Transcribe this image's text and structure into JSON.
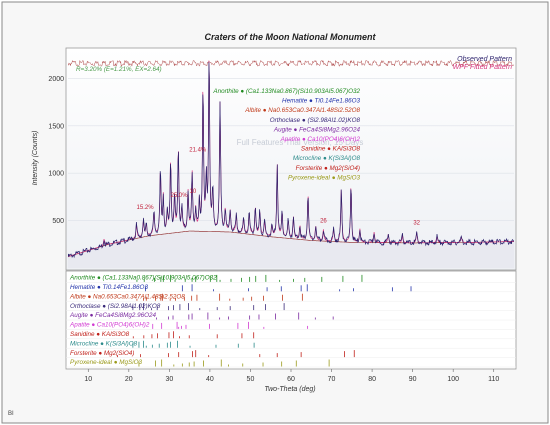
{
  "chart_data": {
    "type": "line",
    "title": "Craters of the Moon National Monument",
    "xlabel": "Two-Theta (deg)",
    "ylabel": "Intensity (Counts)",
    "xlim": [
      5,
      115
    ],
    "ylim": [
      0,
      2300
    ],
    "x_ticks": [
      10,
      20,
      30,
      40,
      50,
      60,
      70,
      80,
      90,
      100,
      110
    ],
    "y_ticks": [
      500,
      1000,
      1500,
      2000
    ],
    "legend": {
      "position": "top-right",
      "entries": [
        "Observed Pattern",
        "WPF Fitted Pattern"
      ]
    },
    "colors": {
      "observed": "#2a1f6b",
      "fitted": "#d6327a",
      "residual": "#b04a4a",
      "background_curve": "#8b2020"
    },
    "annotations": [
      {
        "text": "R=3.20% (E=1.21%, EX=2.64)",
        "x": 9,
        "y": 2195
      },
      {
        "text": "Full Features Trial Version, 15 Days",
        "x": 41,
        "y": 1345
      }
    ],
    "peak_labels": [
      {
        "text": "15.2%",
        "x": 24.0,
        "y": 625
      },
      {
        "text": "25.0%",
        "x": 32.4,
        "y": 750
      },
      {
        "text": "21.4%",
        "x": 37.0,
        "y": 1230
      },
      {
        "text": "10",
        "x": 35.8,
        "y": 790
      },
      {
        "text": "26",
        "x": 68.0,
        "y": 480
      },
      {
        "text": "32",
        "x": 91.0,
        "y": 460
      }
    ],
    "background": [
      [
        5,
        120
      ],
      [
        15,
        250
      ],
      [
        25,
        340
      ],
      [
        35,
        390
      ],
      [
        45,
        380
      ],
      [
        55,
        330
      ],
      [
        65,
        290
      ],
      [
        75,
        270
      ],
      [
        90,
        265
      ],
      [
        105,
        270
      ],
      [
        115,
        280
      ]
    ],
    "peaks": [
      {
        "x": 13.9,
        "h": 70
      },
      {
        "x": 21.9,
        "h": 150
      },
      {
        "x": 23.6,
        "h": 180
      },
      {
        "x": 24.3,
        "h": 120
      },
      {
        "x": 26.2,
        "h": 250
      },
      {
        "x": 27.8,
        "h": 680
      },
      {
        "x": 28.5,
        "h": 390
      },
      {
        "x": 29.5,
        "h": 220
      },
      {
        "x": 30.3,
        "h": 780
      },
      {
        "x": 31.3,
        "h": 380
      },
      {
        "x": 32.2,
        "h": 900
      },
      {
        "x": 33.1,
        "h": 250
      },
      {
        "x": 34.6,
        "h": 420
      },
      {
        "x": 35.6,
        "h": 620
      },
      {
        "x": 36.5,
        "h": 220
      },
      {
        "x": 37.4,
        "h": 310
      },
      {
        "x": 38.3,
        "h": 1550
      },
      {
        "x": 39.1,
        "h": 520
      },
      {
        "x": 39.8,
        "h": 1900
      },
      {
        "x": 40.7,
        "h": 420
      },
      {
        "x": 42.5,
        "h": 1350
      },
      {
        "x": 43.8,
        "h": 240
      },
      {
        "x": 45.0,
        "h": 220
      },
      {
        "x": 46.5,
        "h": 180
      },
      {
        "x": 48.3,
        "h": 160
      },
      {
        "x": 49.7,
        "h": 230
      },
      {
        "x": 51.2,
        "h": 300
      },
      {
        "x": 52.3,
        "h": 260
      },
      {
        "x": 53.5,
        "h": 150
      },
      {
        "x": 55.3,
        "h": 110
      },
      {
        "x": 56.6,
        "h": 780
      },
      {
        "x": 57.8,
        "h": 280
      },
      {
        "x": 59.3,
        "h": 200
      },
      {
        "x": 60.6,
        "h": 230
      },
      {
        "x": 62.2,
        "h": 150
      },
      {
        "x": 64.2,
        "h": 500
      },
      {
        "x": 66.1,
        "h": 150
      },
      {
        "x": 68.0,
        "h": 120
      },
      {
        "x": 70.5,
        "h": 130
      },
      {
        "x": 72.4,
        "h": 560
      },
      {
        "x": 74.8,
        "h": 620
      },
      {
        "x": 77.0,
        "h": 140
      },
      {
        "x": 80.5,
        "h": 110
      },
      {
        "x": 84.0,
        "h": 90
      },
      {
        "x": 87.5,
        "h": 80
      },
      {
        "x": 91.0,
        "h": 110
      },
      {
        "x": 96.0,
        "h": 70
      },
      {
        "x": 102.0,
        "h": 60
      }
    ],
    "residual_level": 2160,
    "phases": [
      {
        "name": "Anorthite",
        "formula": "(Ca1.133Na0.867)(Si10.903Al5.067)O32",
        "color": "#1f8a1f"
      },
      {
        "name": "Hematite",
        "formula": "Ti0.14Fe1.86O3",
        "color": "#2233aa"
      },
      {
        "name": "Albite",
        "formula": "Na0.653Ca0.347Al1.48Si2.52O8",
        "color": "#c03a1a"
      },
      {
        "name": "Orthoclase",
        "formula": "(Si2.98Al1.02)KO8",
        "color": "#3a2a7a"
      },
      {
        "name": "Augite",
        "formula": "FeCa4Si8Mg2.96O24",
        "color": "#7a2aa0"
      },
      {
        "name": "Apatite",
        "formula": "Ca10(PO4)6(OH)2",
        "color": "#d23ad2"
      },
      {
        "name": "Sanidine",
        "formula": "KAlSi3O8",
        "color": "#c0201a"
      },
      {
        "name": "Microcline",
        "formula": "K(Si3Al)O8",
        "color": "#2a8a8a"
      },
      {
        "name": "Forsterite",
        "formula": "Mg2(SiO4)",
        "color": "#c0201a"
      },
      {
        "name": "Pyroxene-ideal",
        "formula": "MgSiO3",
        "color": "#9a9a1a"
      }
    ],
    "phase_sticks": [
      [
        22.0,
        23.8,
        26.3,
        27.9,
        28.5,
        30.3,
        31.4,
        33.9,
        35.6,
        36.5,
        40.1,
        41.7,
        42.5,
        45.2,
        47.8,
        49.8,
        51.3,
        53.8,
        57.2,
        60.6,
        63.4,
        67.6,
        72.8,
        77.5
      ],
      [
        24.1,
        33.2,
        35.6,
        40.9,
        49.5,
        54.1,
        57.6,
        62.5,
        64.0,
        72.0,
        75.4,
        85.0,
        89.6
      ],
      [
        22.0,
        23.6,
        24.3,
        26.6,
        27.9,
        28.3,
        30.2,
        31.5,
        33.7,
        35.5,
        36.8,
        42.4,
        44.9,
        48.2,
        50.3,
        53.2,
        57.9,
        62.8
      ],
      [
        21.0,
        22.7,
        23.6,
        25.6,
        27.0,
        29.8,
        31.0,
        32.6,
        34.7,
        37.5,
        41.8,
        45.0,
        50.8,
        53.7,
        58.3
      ],
      [
        26.8,
        29.8,
        30.9,
        34.8,
        35.6,
        39.5,
        42.4,
        44.6,
        49.8,
        52.1,
        56.2,
        61.9,
        66.0,
        70.4
      ],
      [
        25.9,
        28.1,
        31.9,
        32.3,
        33.0,
        34.1,
        39.9,
        46.9,
        49.5,
        53.3,
        64.1
      ],
      [
        21.1,
        23.7,
        25.7,
        27.1,
        29.9,
        31.0,
        32.5,
        34.9,
        41.8,
        47.9,
        50.8
      ],
      [
        21.0,
        22.5,
        23.6,
        24.3,
        25.8,
        27.5,
        29.5,
        30.3,
        32.0,
        35.1,
        41.5,
        47.0,
        50.9
      ],
      [
        17.2,
        22.9,
        29.8,
        32.3,
        35.7,
        36.5,
        39.7,
        52.3,
        56.6,
        62.5,
        73.2,
        75.6
      ],
      [
        22.5,
        26.6,
        28.1,
        31.1,
        33.2,
        34.9,
        36.1,
        38.4,
        42.8,
        44.6,
        48.1,
        53.1,
        57.7,
        61.3,
        69.4
      ]
    ]
  },
  "corner_text": "BI"
}
